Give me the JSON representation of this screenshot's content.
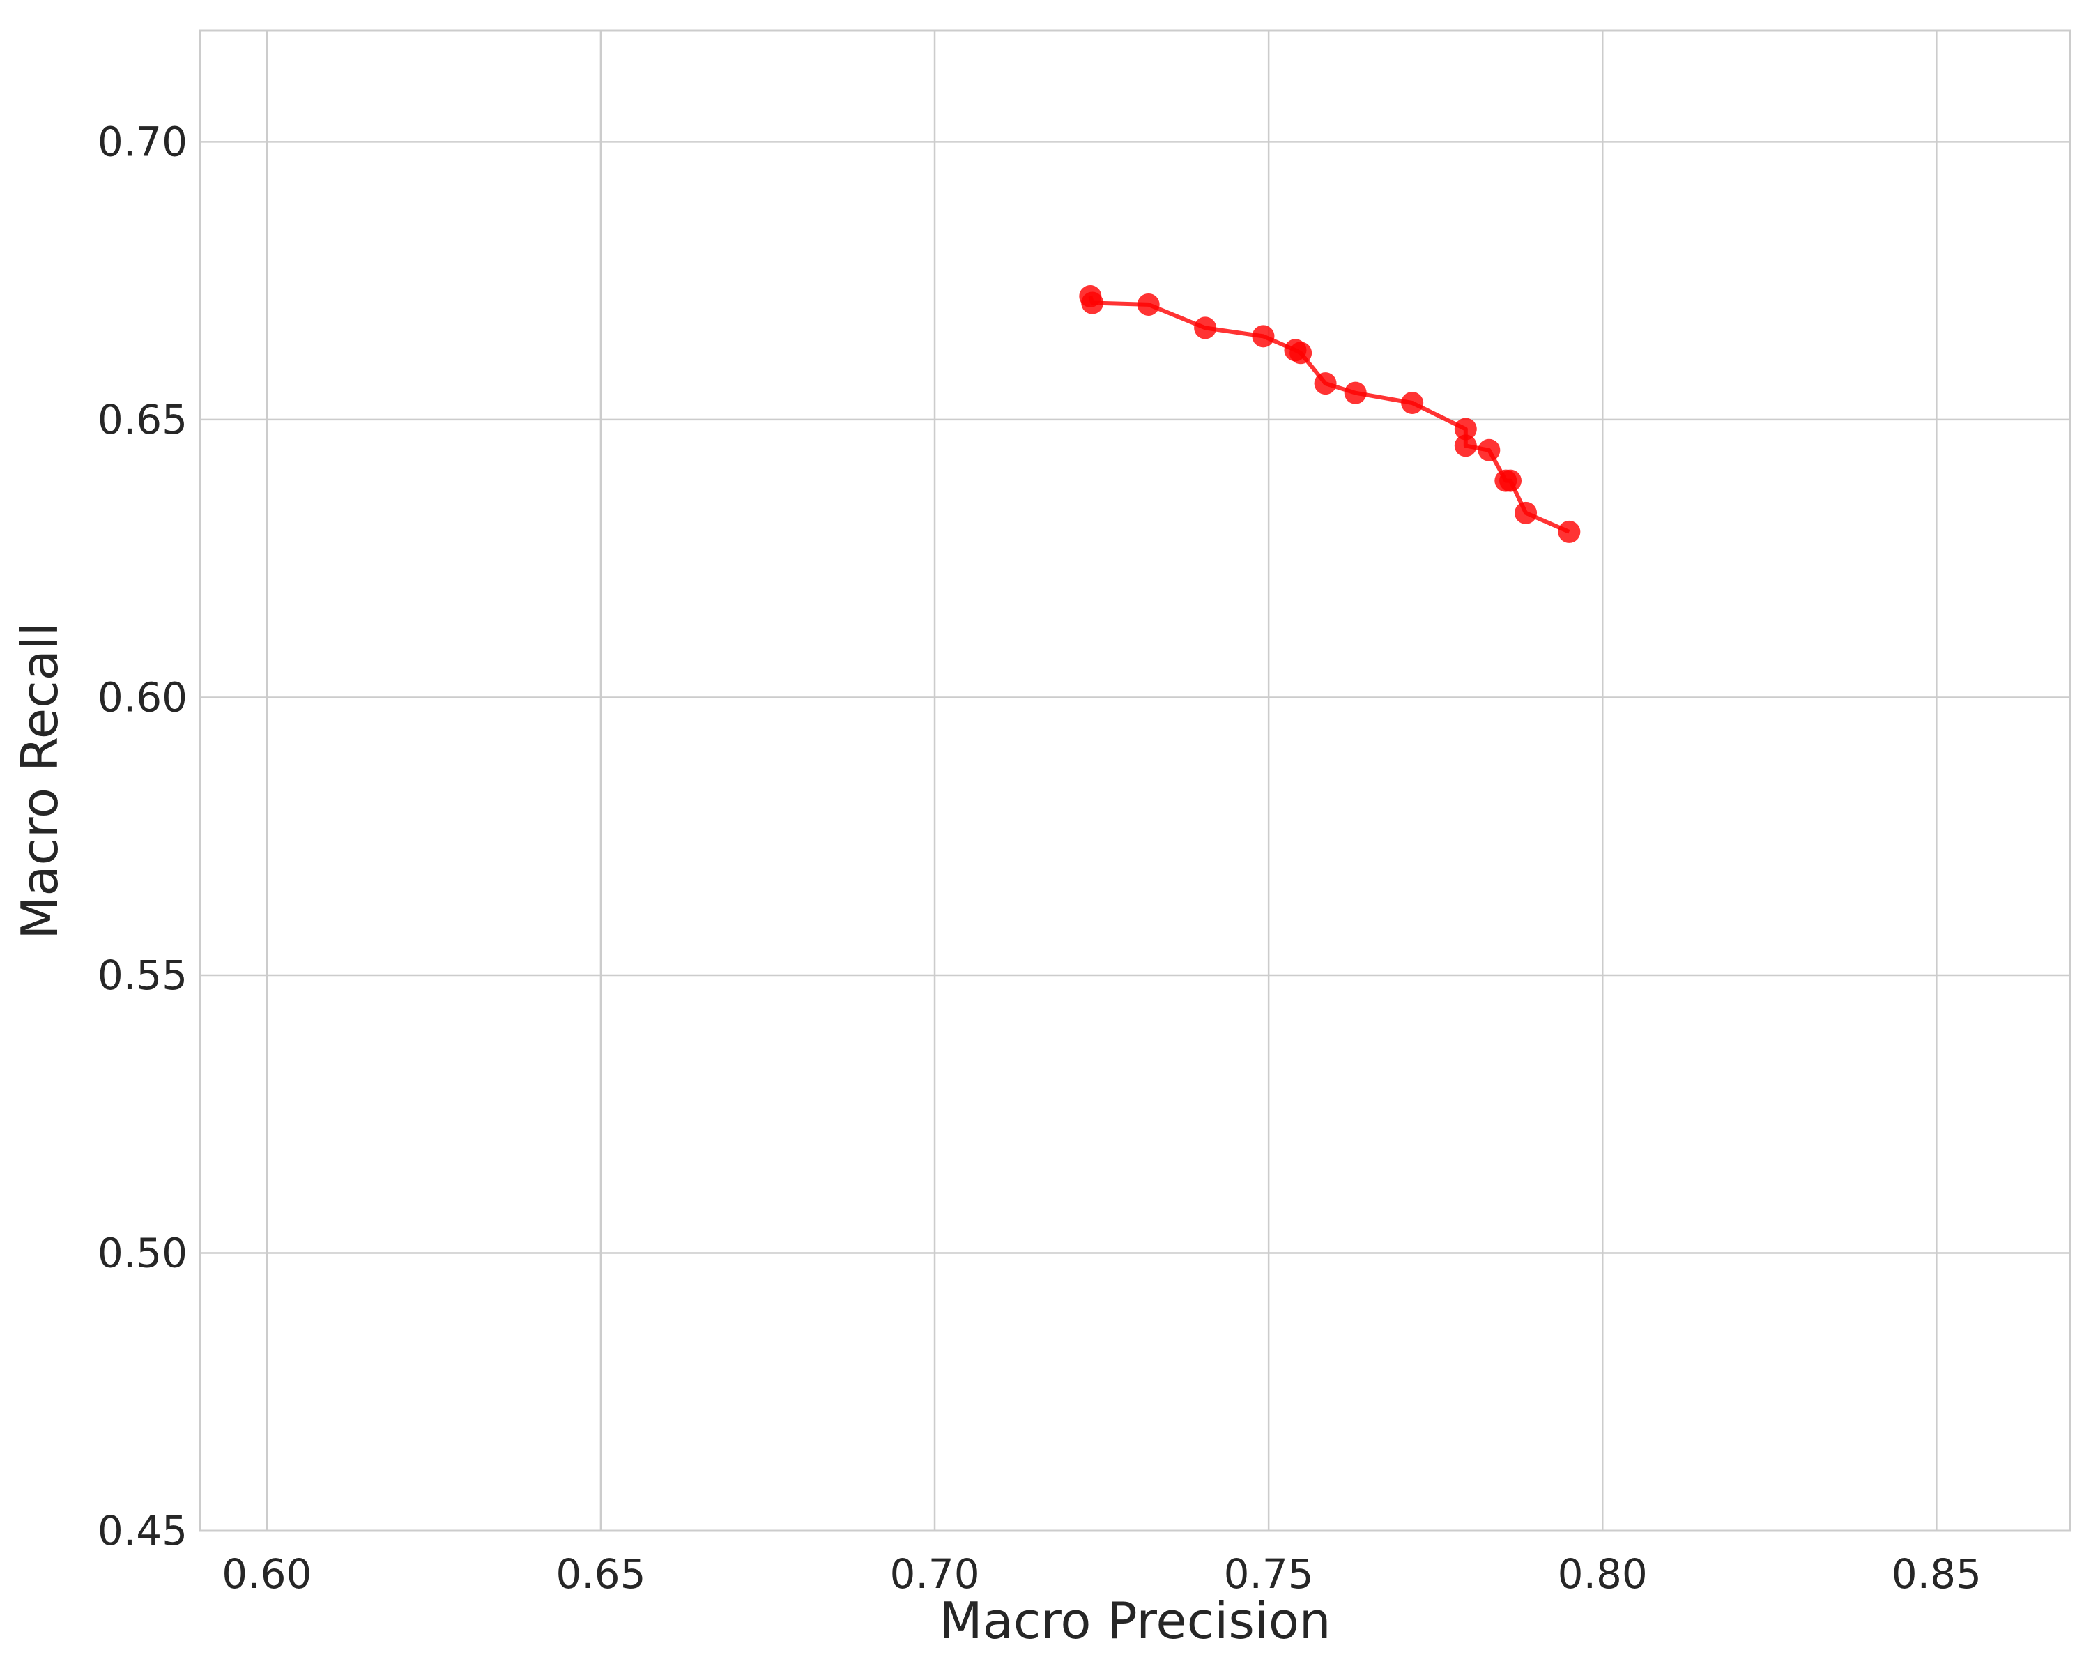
{
  "chart_data": {
    "type": "line",
    "xlabel": "Macro Precision",
    "ylabel": "Macro Recall",
    "xlim": [
      0.59,
      0.87
    ],
    "ylim": [
      0.45,
      0.72
    ],
    "xticks": [
      0.6,
      0.65,
      0.7,
      0.75,
      0.8,
      0.85
    ],
    "yticks": [
      0.45,
      0.5,
      0.55,
      0.6,
      0.65,
      0.7
    ],
    "xtick_labels": [
      "0.60",
      "0.65",
      "0.70",
      "0.75",
      "0.80",
      "0.85"
    ],
    "ytick_labels": [
      "0.45",
      "0.50",
      "0.55",
      "0.60",
      "0.65",
      "0.70"
    ],
    "grid": true,
    "legend": null,
    "color": "#ff0000",
    "series": [
      {
        "x": [
          0.7233,
          0.7236,
          0.732,
          0.7405,
          0.7492,
          0.754,
          0.7548,
          0.7585,
          0.763,
          0.7715,
          0.7795,
          0.7795,
          0.783,
          0.7855,
          0.7862,
          0.7885,
          0.795
        ],
        "y": [
          0.6722,
          0.671,
          0.6707,
          0.6665,
          0.665,
          0.6625,
          0.662,
          0.6565,
          0.6548,
          0.653,
          0.6483,
          0.6453,
          0.6445,
          0.639,
          0.639,
          0.6332,
          0.6298
        ]
      }
    ]
  }
}
